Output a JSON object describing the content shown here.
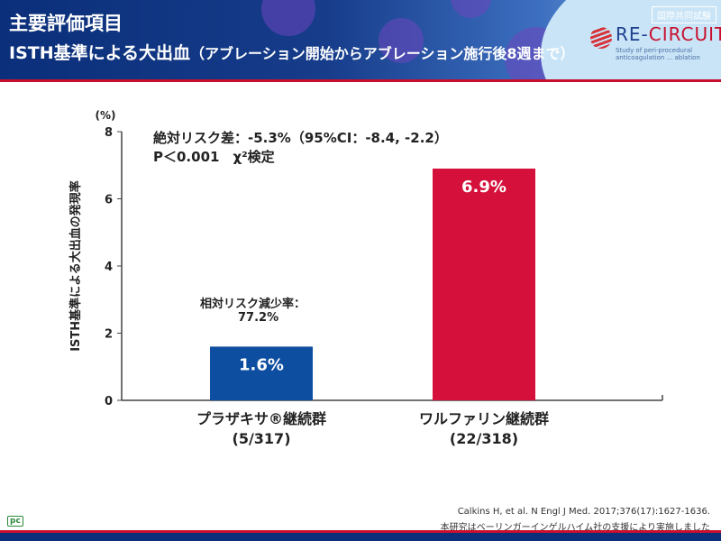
{
  "header": {
    "title": "主要評価項目",
    "subtitle_main": "ISTH基準による大出血",
    "subtitle_paren": "（アブレーション開始からアブレーション施行後8週まで）",
    "badge": "国際共同試験",
    "logo": {
      "re": "RE-",
      "circuit": "CIRCUIT",
      "reg": "®",
      "tagline": "Study of peri-procedural anticoagulation ... ablation"
    }
  },
  "annotations": {
    "abs_risk": "絶対リスク差：-5.3%（95%CI：-8.4, -2.2）",
    "p_value": "P＜0.001　χ²検定",
    "rel_label": "相対リスク減少率：",
    "rel_value": "77.2%"
  },
  "chart_data": {
    "type": "bar",
    "categories": [
      "プラザキサ®継続群",
      "ワルファリン継続群"
    ],
    "category_n": [
      "(5/317)",
      "(22/318)"
    ],
    "values": [
      1.6,
      6.9
    ],
    "data_labels": [
      "1.6%",
      "6.9%"
    ],
    "colors": [
      "#0d4ea0",
      "#d5103a"
    ],
    "ylabel": "ISTH基準による大出血の発現率",
    "yunit": "(%)",
    "ylim": [
      0,
      8
    ],
    "yticks": [
      "0",
      "2",
      "4",
      "6",
      "8"
    ],
    "grid": false
  },
  "footer": {
    "ref1": "Calkins H, et al. N Engl J Med. 2017;376(17):1627-1636.",
    "ref2": "本研究はベーリンガーインゲルハイム社の支援により実施しました",
    "pc": "pc"
  }
}
